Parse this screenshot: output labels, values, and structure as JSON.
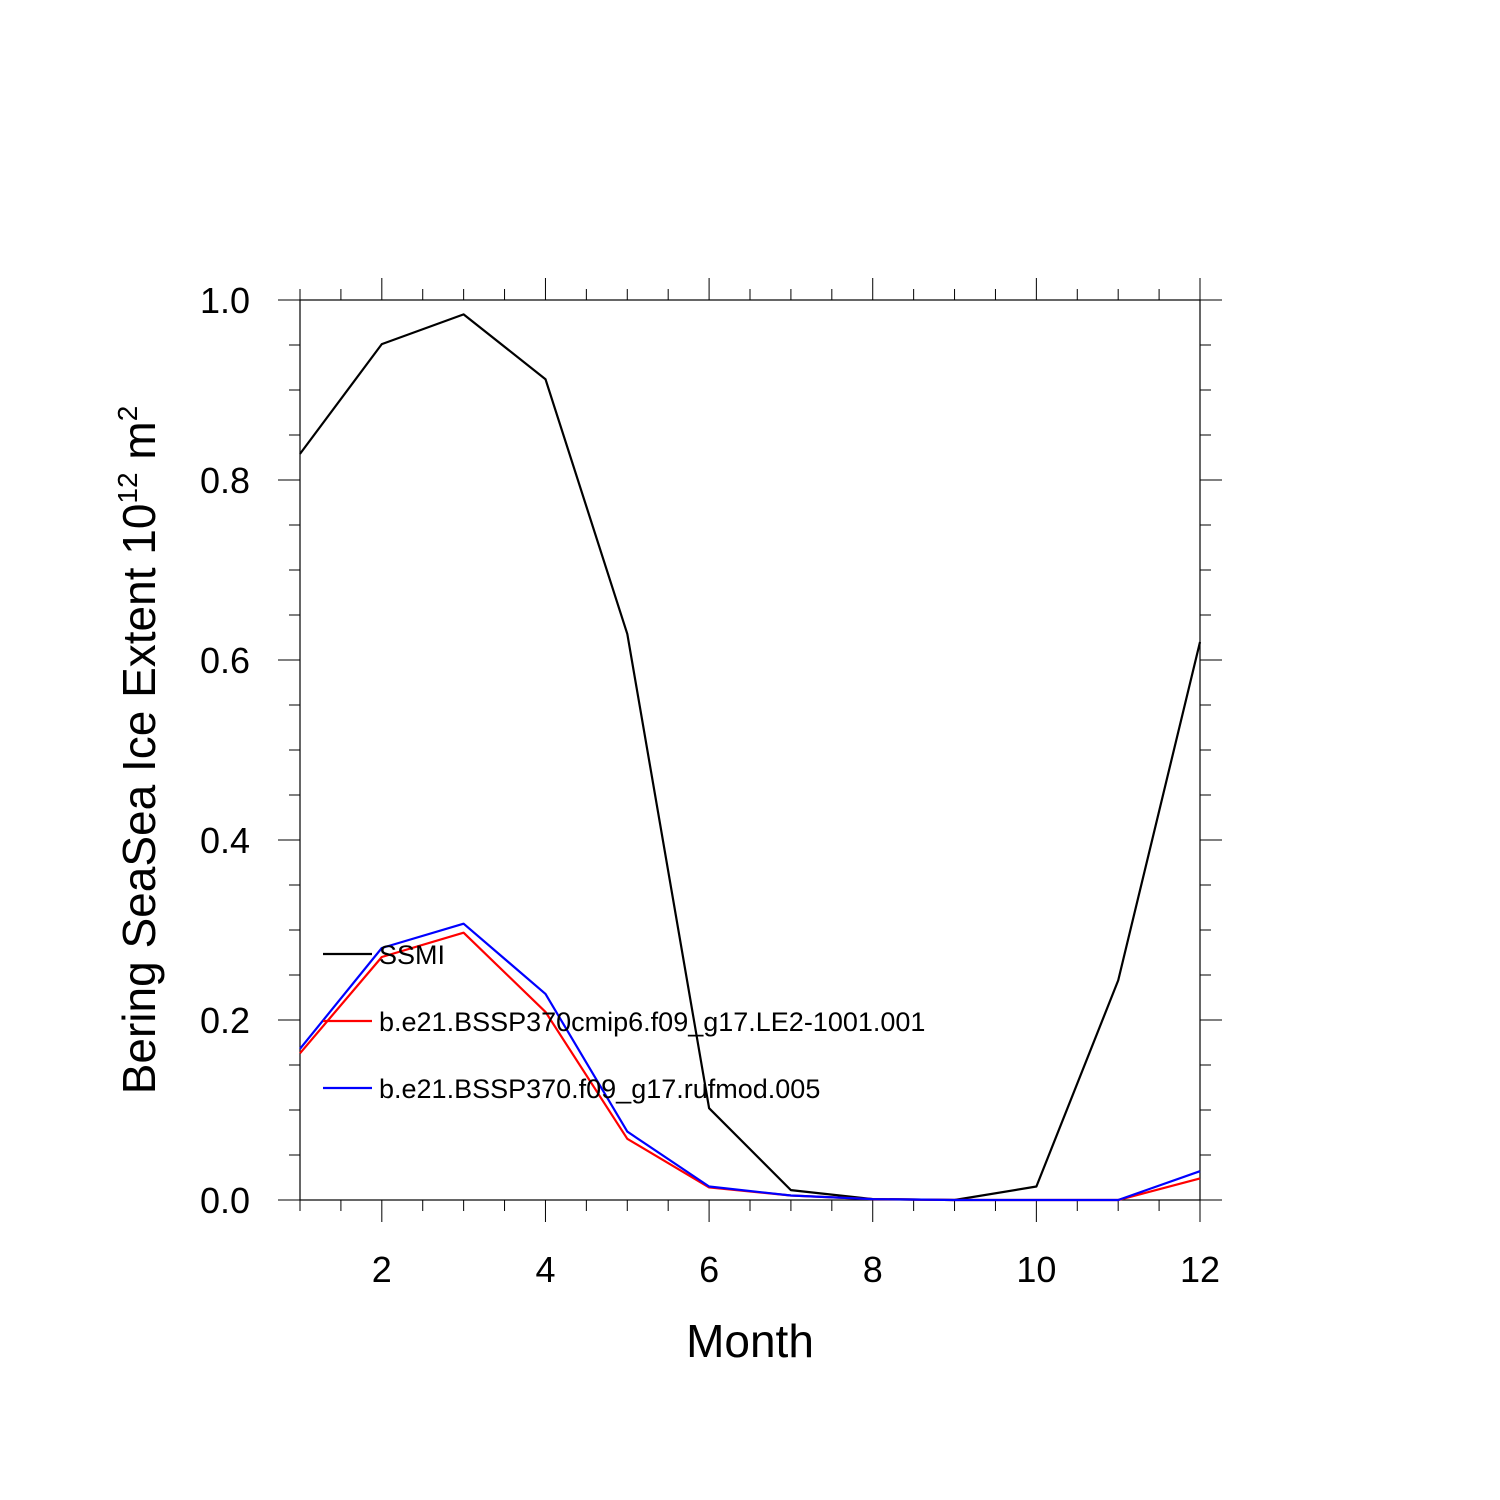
{
  "chart_data": {
    "type": "line",
    "title": "",
    "xlabel": "Month",
    "ylabel": {
      "prefix": "Bering SeaSea Ice Extent 10",
      "exponent": "12",
      "unit": " m",
      "unit_exponent": "2"
    },
    "xlim": [
      1,
      12
    ],
    "ylim": [
      0,
      1.0
    ],
    "x_ticks": [
      2,
      4,
      6,
      8,
      10,
      12
    ],
    "x_tick_labels": [
      "2",
      "4",
      "6",
      "8",
      "10",
      "12"
    ],
    "y_ticks": [
      0,
      0.2,
      0.4,
      0.6,
      0.8,
      1.0
    ],
    "y_tick_labels": [
      "0.0",
      "0.2",
      "0.4",
      "0.6",
      "0.8",
      "1.0"
    ],
    "grid": false,
    "legend_position": "lower-left",
    "x": [
      1,
      2,
      3,
      4,
      5,
      6,
      7,
      8,
      9,
      10,
      11,
      12
    ],
    "series": [
      {
        "name": "SSMI",
        "color": "#000000",
        "values": [
          0.829,
          0.951,
          0.984,
          0.912,
          0.629,
          0.102,
          0.011,
          0.001,
          0.0,
          0.015,
          0.244,
          0.62
        ]
      },
      {
        "name": "b.e21.BSSP370cmip6.f09_g17.LE2-1001.001",
        "color": "#ff0000",
        "values": [
          0.163,
          0.27,
          0.297,
          0.209,
          0.068,
          0.014,
          0.005,
          0.001,
          0.0,
          0.0,
          0.0,
          0.024
        ]
      },
      {
        "name": "b.e21.BSSP370.f09_g17.rufmod.005",
        "color": "#0000ff",
        "values": [
          0.168,
          0.28,
          0.307,
          0.229,
          0.076,
          0.015,
          0.005,
          0.001,
          0.0,
          0.0,
          0.0,
          0.032
        ]
      }
    ]
  }
}
